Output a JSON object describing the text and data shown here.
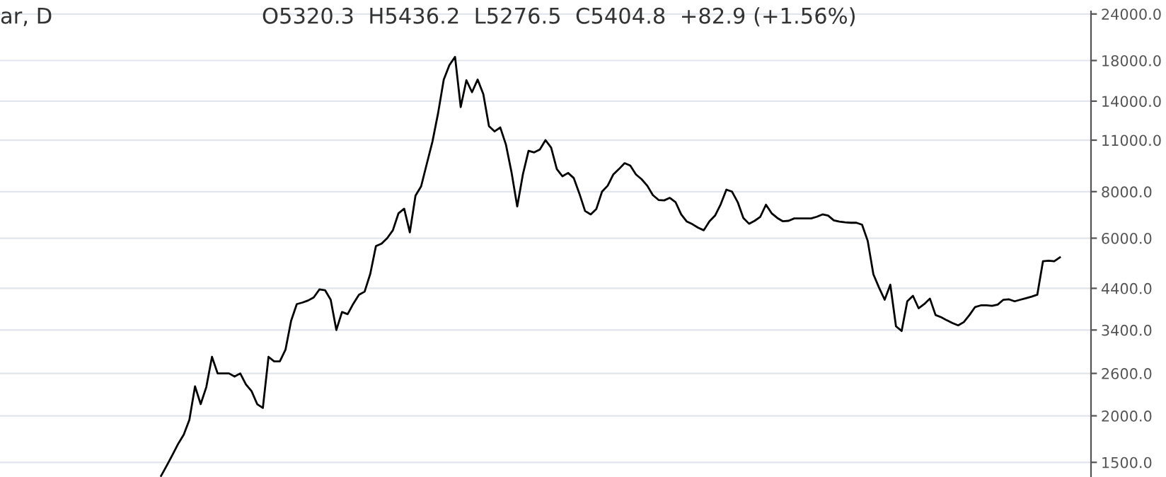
{
  "chart_data": {
    "type": "line",
    "title": "ar, D",
    "annotations": [
      "O5320.3  H5436.2  L5276.5  C5404.8  +82.9 (+1.56%)"
    ],
    "categories": [
      null,
      null,
      null,
      null,
      null,
      null,
      null,
      null,
      null,
      null,
      null,
      null,
      null,
      null,
      null,
      null,
      null,
      null,
      null,
      null,
      null,
      null,
      null,
      null,
      null,
      null,
      null,
      null,
      null,
      null,
      null,
      null,
      null,
      null,
      null,
      null,
      null,
      null,
      null,
      null,
      null,
      null,
      null,
      null,
      null,
      null,
      null,
      null,
      null,
      null,
      null,
      null,
      null,
      null,
      null,
      null,
      null,
      null,
      null,
      null,
      null,
      null,
      null,
      null,
      null,
      null,
      null,
      null,
      null,
      null,
      null,
      null,
      null,
      null,
      null,
      null,
      null,
      null,
      null,
      null,
      null,
      null,
      null,
      null,
      null,
      null,
      null,
      null,
      null,
      null,
      null,
      null,
      null,
      null,
      null,
      null,
      null,
      null,
      null,
      null,
      null,
      null,
      null,
      null,
      null,
      null,
      null,
      null,
      null,
      null,
      null,
      null,
      null,
      null,
      null,
      null,
      null,
      null,
      null,
      null,
      null,
      null,
      null,
      null,
      null,
      null,
      null,
      null,
      null,
      null,
      null,
      null,
      null,
      null,
      null,
      null,
      null,
      null,
      null,
      null,
      null,
      null,
      null,
      null,
      null,
      null,
      null,
      null,
      null,
      null,
      null,
      null,
      null,
      null,
      null,
      null,
      null,
      null,
      null,
      null,
      null,
      null,
      null,
      null,
      null,
      null,
      null,
      null,
      null,
      null,
      null,
      null,
      null,
      null,
      null,
      null,
      null,
      null,
      null,
      null,
      null,
      null,
      null,
      null,
      null,
      null,
      null,
      null,
      null,
      null,
      null,
      null,
      null
    ],
    "series": [
      {
        "color": "#000000",
        "values": [
          null,
          null,
          null,
          null,
          null,
          null,
          null,
          null,
          null,
          null,
          null,
          null,
          null,
          null,
          null,
          null,
          null,
          null,
          null,
          null,
          null,
          null,
          null,
          null,
          null,
          null,
          null,
          null,
          1380,
          1470,
          1570,
          1680,
          1780,
          1950,
          2400,
          2150,
          2390,
          2880,
          2600,
          2600,
          2600,
          2550,
          2600,
          2430,
          2330,
          2150,
          2100,
          2880,
          2800,
          2800,
          3010,
          3600,
          3990,
          4030,
          4080,
          4160,
          4370,
          4350,
          4100,
          3400,
          3800,
          3750,
          4000,
          4230,
          4310,
          4810,
          5710,
          5800,
          6000,
          6300,
          7000,
          7200,
          6220,
          7800,
          8270,
          9500,
          10900,
          13000,
          16000,
          17500,
          18410,
          13500,
          15930,
          14800,
          16000,
          14620,
          12000,
          11610,
          11900,
          10700,
          9000,
          7300,
          8900,
          10300,
          10200,
          10380,
          11000,
          10500,
          9200,
          8800,
          8980,
          8700,
          7900,
          7100,
          6950,
          7190,
          8000,
          8300,
          8900,
          9200,
          9540,
          9400,
          8900,
          8640,
          8300,
          7830,
          7600,
          7580,
          7700,
          7500,
          6950,
          6650,
          6540,
          6400,
          6300,
          6660,
          6900,
          7400,
          8100,
          8000,
          7500,
          6800,
          6560,
          6680,
          6850,
          7380,
          7000,
          6800,
          6660,
          6680,
          6780,
          6780,
          6780,
          6780,
          6850,
          6950,
          6900,
          6700,
          6650,
          6620,
          6600,
          6600,
          6520,
          5900,
          4800,
          4420,
          4100,
          4500,
          3480,
          3380,
          4060,
          4200,
          3890,
          3990,
          4130,
          3730,
          3680,
          3610,
          3550,
          3500,
          3570,
          3730,
          3920,
          3960,
          3960,
          3950,
          3980,
          4100,
          4110,
          4060,
          4100,
          4140,
          4180,
          4230,
          5200,
          5220,
          5200,
          5330,
          null,
          null,
          null,
          null,
          null
        ]
      }
    ],
    "log": "y",
    "ylim": [
      1370,
      24400
    ],
    "yticks": [
      {
        "value": 1500,
        "label": "1500.0"
      },
      {
        "value": 2000,
        "label": "2000.0"
      },
      {
        "value": 2600,
        "label": "2600.0"
      },
      {
        "value": 3400,
        "label": "3400.0"
      },
      {
        "value": 4400,
        "label": "4400.0"
      },
      {
        "value": 6000,
        "label": "6000.0"
      },
      {
        "value": 8000,
        "label": "8000.0"
      },
      {
        "value": 11000,
        "label": "11000.0"
      },
      {
        "value": 14000,
        "label": "14000.0"
      },
      {
        "value": 18000,
        "label": "18000.0"
      },
      {
        "value": 24000,
        "label": "24000.0"
      }
    ],
    "tick_labels": "y",
    "grid": "y",
    "line_style": "solid",
    "marker": "none"
  }
}
